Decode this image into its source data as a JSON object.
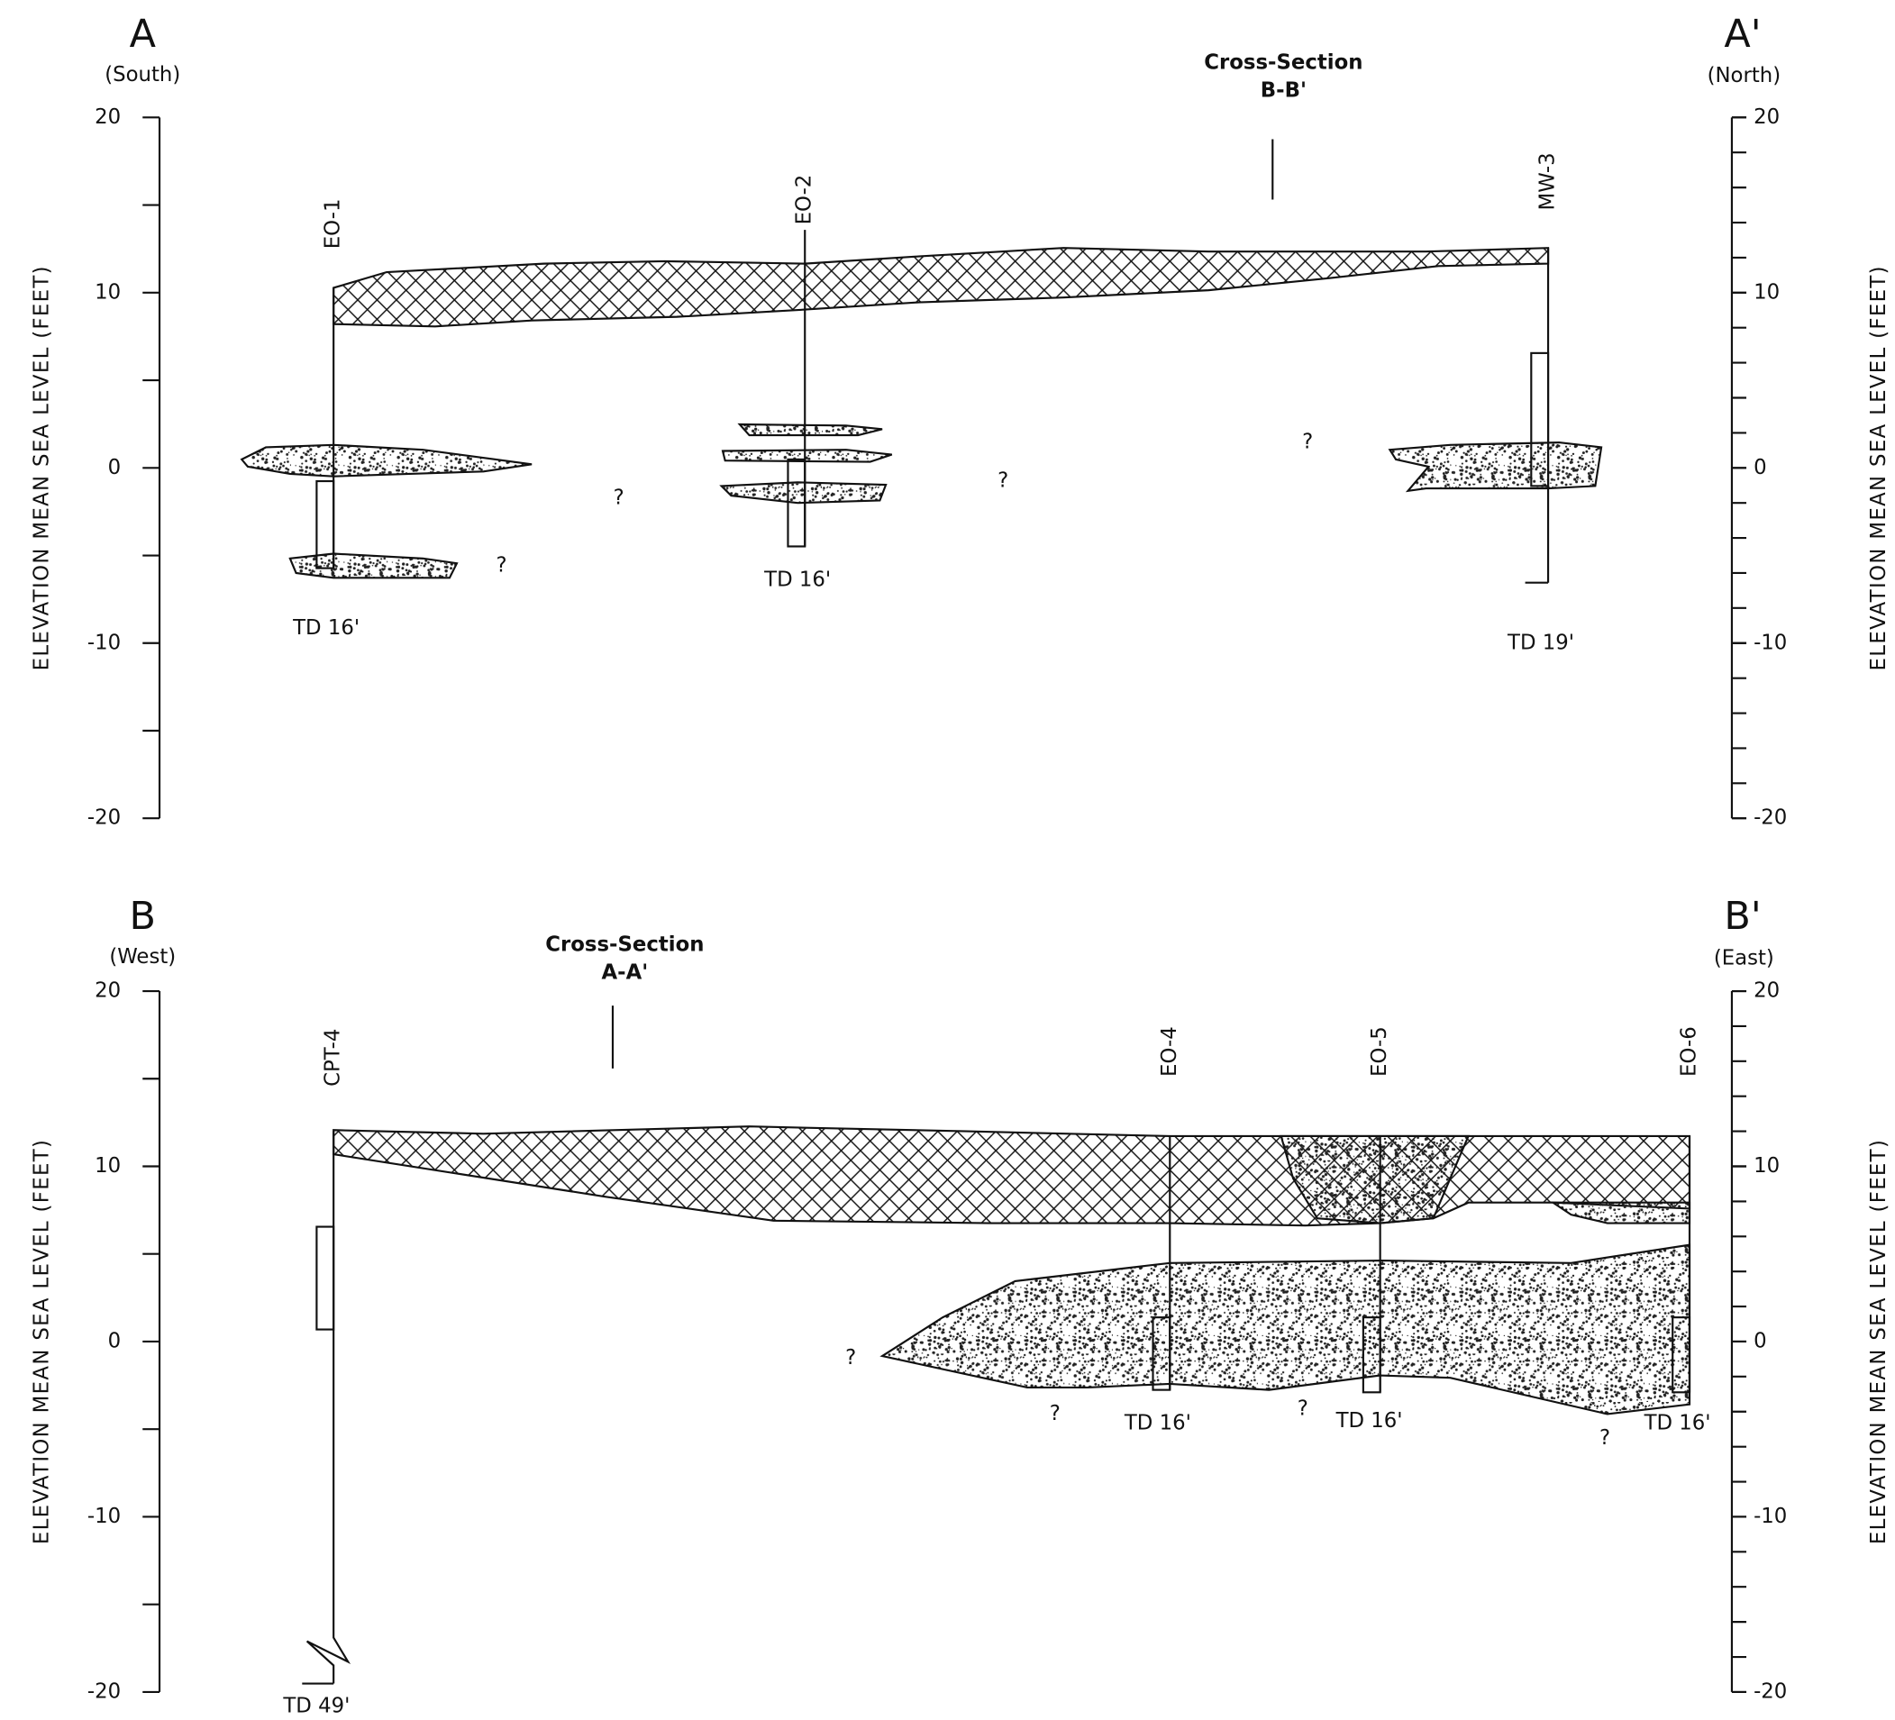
{
  "sections": [
    {
      "start_label": "A",
      "start_direction": "(South)",
      "end_label": "A'",
      "end_direction": "(North)",
      "axis_title": "ELEVATION MEAN SEA LEVEL (FEET)",
      "ticks": [
        20,
        10,
        0,
        -10,
        -20
      ],
      "crossing": [
        "Cross-Section",
        "B-B'"
      ],
      "wells": [
        {
          "name": "EO-1",
          "td": "TD 16'"
        },
        {
          "name": "EO-2",
          "td": "TD 16'"
        },
        {
          "name": "MW-3",
          "td": "TD 19'"
        }
      ],
      "unknowns": [
        "?",
        "?",
        "?",
        "?"
      ]
    },
    {
      "start_label": "B",
      "start_direction": "(West)",
      "end_label": "B'",
      "end_direction": "(East)",
      "axis_title": "ELEVATION MEAN SEA LEVEL (FEET)",
      "ticks": [
        20,
        10,
        0,
        -10,
        -20
      ],
      "crossing": [
        "Cross-Section",
        "A-A'"
      ],
      "wells": [
        {
          "name": "CPT-4",
          "td": "TD 49'"
        },
        {
          "name": "EO-4",
          "td": "TD 16'"
        },
        {
          "name": "EO-5",
          "td": "TD 16'"
        },
        {
          "name": "EO-6",
          "td": "TD 16'"
        }
      ],
      "unknowns": [
        "?",
        "?",
        "?",
        "?"
      ]
    }
  ]
}
